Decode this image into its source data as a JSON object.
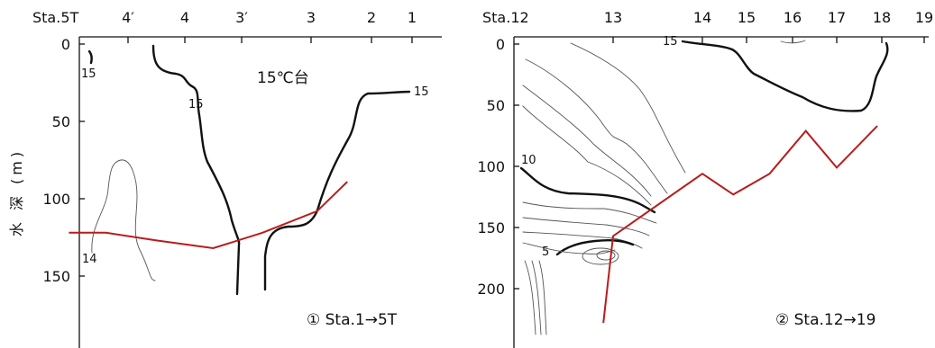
{
  "chart_data": [
    {
      "type": "line",
      "title": "",
      "annotation": "① Sta.1→5T",
      "region_label": "15℃台",
      "ylabel": "水 深 (m)",
      "ylim": [
        0,
        160
      ],
      "y_inverted": true,
      "y_ticks": [
        0,
        50,
        100,
        150
      ],
      "stations": [
        "Sta.5T",
        "4′",
        "4",
        "3′",
        "3",
        "2",
        "1"
      ],
      "contour_labels": [
        "15",
        "15",
        "15",
        "14"
      ],
      "series": [
        {
          "role": "bottom-depth",
          "color": "#b81c1c",
          "points": [
            [
              -0.6,
              122
            ],
            [
              0.4,
              122
            ],
            [
              1.5,
              127
            ],
            [
              2.5,
              132
            ],
            [
              3.3,
              122
            ],
            [
              4.1,
              108
            ],
            [
              4.6,
              89
            ]
          ]
        }
      ]
    },
    {
      "type": "line",
      "title": "",
      "annotation": "② Sta.12→19",
      "ylabel": "",
      "ylim": [
        0,
        220
      ],
      "y_inverted": true,
      "y_ticks": [
        0,
        50,
        100,
        150,
        200
      ],
      "stations": [
        "Sta.12",
        "13",
        "14",
        "15",
        "16",
        "17",
        "18",
        "19"
      ],
      "contour_labels": [
        "15",
        "10",
        "5"
      ],
      "series": [
        {
          "role": "bottom-depth",
          "color": "#b81c1c",
          "points": [
            [
              0.9,
              228
            ],
            [
              1.0,
              157
            ],
            [
              2.0,
              106
            ],
            [
              2.7,
              123
            ],
            [
              3.5,
              106
            ],
            [
              4.3,
              71
            ],
            [
              5.0,
              101
            ],
            [
              5.9,
              67
            ]
          ]
        }
      ]
    }
  ]
}
